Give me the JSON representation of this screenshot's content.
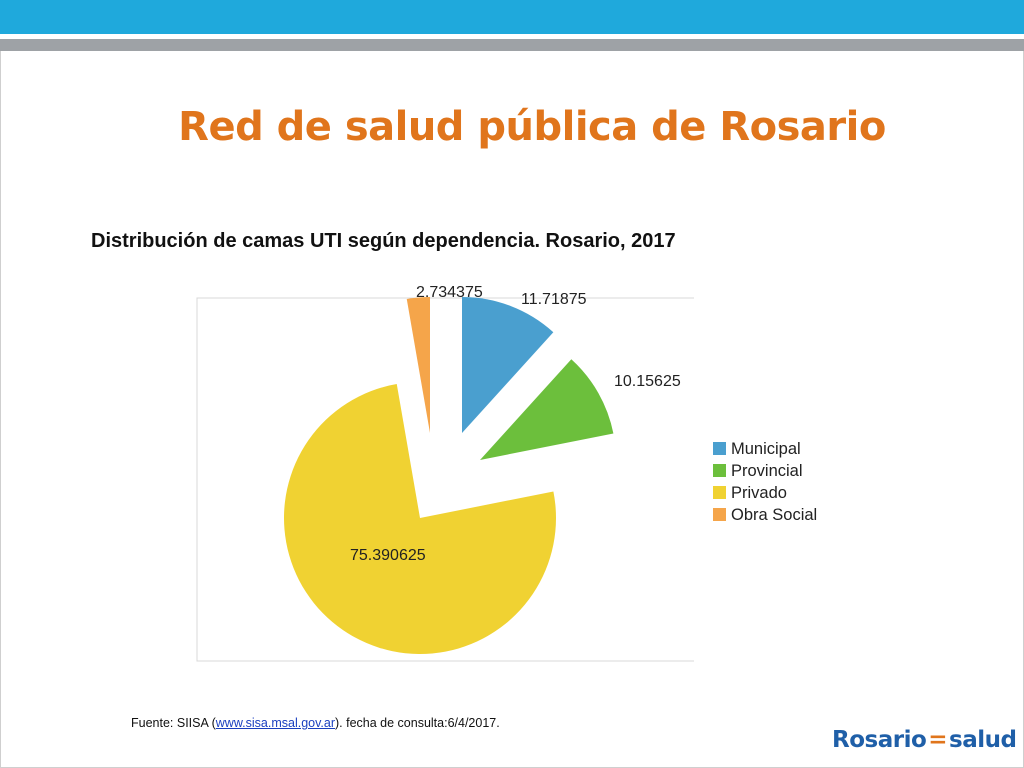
{
  "slide": {
    "title": "Red de salud pública de Rosario",
    "source_prefix": "Fuente: SIISA (",
    "source_link": "www.sisa.msal.gov.ar",
    "source_suffix": "). fecha de consulta:6/4/2017.",
    "logo_left": "Rosario",
    "logo_eq": "=",
    "logo_right": "salud"
  },
  "colors": {
    "header_blue": "#1fa9dc",
    "header_gray": "#9ea2a6",
    "title_orange": "#e0751c",
    "municipal": "#4a9fcf",
    "provincial": "#6cbf3c",
    "privado": "#f0d232",
    "obra_social": "#f5a54a"
  },
  "chart_data": {
    "type": "pie",
    "title": "Distribución de camas UTI según dependencia. Rosario, 2017",
    "exploded": true,
    "legend_position": "right",
    "slices": [
      {
        "label": "Municipal",
        "value": 11.71875,
        "value_label": "11.71875",
        "color": "#4a9fcf"
      },
      {
        "label": "Provincial",
        "value": 10.15625,
        "value_label": "10.15625",
        "color": "#6cbf3c"
      },
      {
        "label": "Privado",
        "value": 75.390625,
        "value_label": "75.390625",
        "color": "#f0d232"
      },
      {
        "label": "Obra Social",
        "value": 2.734375,
        "value_label": "2.734375",
        "color": "#f5a54a"
      }
    ]
  }
}
